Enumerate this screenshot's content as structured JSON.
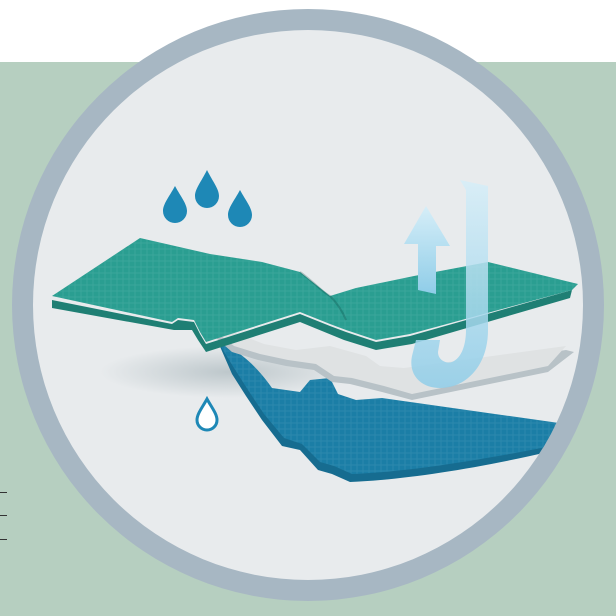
{
  "colors": {
    "background": "#ffffff",
    "band": "#b6cfc0",
    "ring": "#a7b7c3",
    "disc": "#e8ebed",
    "shadow": "#cfd6d9",
    "top_layer": "#2a9e91",
    "top_layer_edge": "#1f7f74",
    "middle_layer": "#dfe2e3",
    "middle_layer_edge": "#b8c2c7",
    "bottom_layer": "#1b7ea6",
    "bottom_layer_dark": "#166c90",
    "drops": "#1e88b6",
    "drop_outline": "#1e88b6",
    "arrow": "#8fcde8",
    "arrow_light": "#bfe3f2",
    "ticks": "#333333"
  },
  "icons": {
    "rain_drops": "water-drop-icon",
    "small_drop": "outline-drop-icon",
    "vapor_up": "arrow-up-icon",
    "vapor_loop": "u-turn-arrow-icon"
  },
  "layers": [
    "top-fabric",
    "membrane",
    "bottom-lining"
  ]
}
